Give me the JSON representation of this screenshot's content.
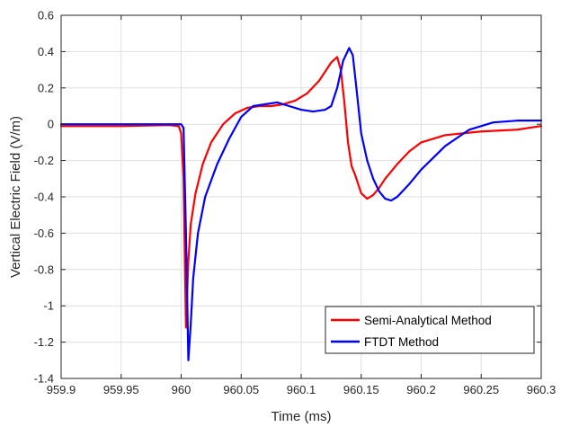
{
  "chart_data": {
    "type": "line",
    "xlabel": "Time (ms)",
    "ylabel": "Vertical Electric Field (V/m)",
    "xlim": [
      959.9,
      960.3
    ],
    "ylim": [
      -1.4,
      0.6
    ],
    "x_ticks": [
      "959.9",
      "959.95",
      "960",
      "960.05",
      "960.1",
      "960.15",
      "960.2",
      "960.25",
      "960.3"
    ],
    "y_ticks": [
      "0.6",
      "0.4",
      "0.2",
      "0",
      "-0.2",
      "-0.4",
      "-0.6",
      "-0.8",
      "-1",
      "-1.2",
      "-1.4"
    ],
    "grid": true,
    "legend_position": "bottom-right",
    "series": [
      {
        "name": "Semi-Analytical Method",
        "color": "#ff0000",
        "x": [
          959.9,
          959.95,
          959.99,
          959.998,
          960.0,
          960.002,
          960.004,
          960.006,
          960.008,
          960.012,
          960.018,
          960.025,
          960.035,
          960.045,
          960.055,
          960.065,
          960.075,
          960.085,
          960.095,
          960.105,
          960.115,
          960.12,
          960.125,
          960.13,
          960.133,
          960.136,
          960.139,
          960.142,
          960.145,
          960.15,
          960.155,
          960.16,
          960.165,
          960.17,
          960.18,
          960.19,
          960.2,
          960.22,
          960.25,
          960.28,
          960.3
        ],
        "y": [
          -0.01,
          -0.01,
          -0.005,
          -0.01,
          -0.05,
          -0.3,
          -1.12,
          -0.75,
          -0.55,
          -0.38,
          -0.22,
          -0.1,
          0.0,
          0.06,
          0.09,
          0.1,
          0.1,
          0.11,
          0.13,
          0.17,
          0.24,
          0.29,
          0.34,
          0.37,
          0.3,
          0.12,
          -0.1,
          -0.23,
          -0.28,
          -0.38,
          -0.41,
          -0.39,
          -0.35,
          -0.3,
          -0.22,
          -0.15,
          -0.1,
          -0.06,
          -0.04,
          -0.03,
          -0.01
        ]
      },
      {
        "name": "FTDT Method",
        "color": "#0000ff",
        "x": [
          959.9,
          959.95,
          959.99,
          960.0,
          960.002,
          960.004,
          960.006,
          960.008,
          960.01,
          960.014,
          960.02,
          960.03,
          960.04,
          960.05,
          960.06,
          960.07,
          960.08,
          960.09,
          960.1,
          960.11,
          960.12,
          960.125,
          960.13,
          960.135,
          960.14,
          960.143,
          960.146,
          960.15,
          960.155,
          960.16,
          960.165,
          960.17,
          960.175,
          960.18,
          960.19,
          960.2,
          960.22,
          960.24,
          960.26,
          960.28,
          960.3
        ],
        "y": [
          0.0,
          0.0,
          0.0,
          0.0,
          -0.02,
          -0.6,
          -1.3,
          -1.1,
          -0.85,
          -0.6,
          -0.4,
          -0.22,
          -0.08,
          0.04,
          0.1,
          0.11,
          0.12,
          0.1,
          0.08,
          0.07,
          0.08,
          0.1,
          0.2,
          0.35,
          0.42,
          0.38,
          0.2,
          -0.05,
          -0.2,
          -0.3,
          -0.37,
          -0.41,
          -0.42,
          -0.4,
          -0.33,
          -0.25,
          -0.12,
          -0.03,
          0.01,
          0.02,
          0.02
        ]
      }
    ]
  }
}
